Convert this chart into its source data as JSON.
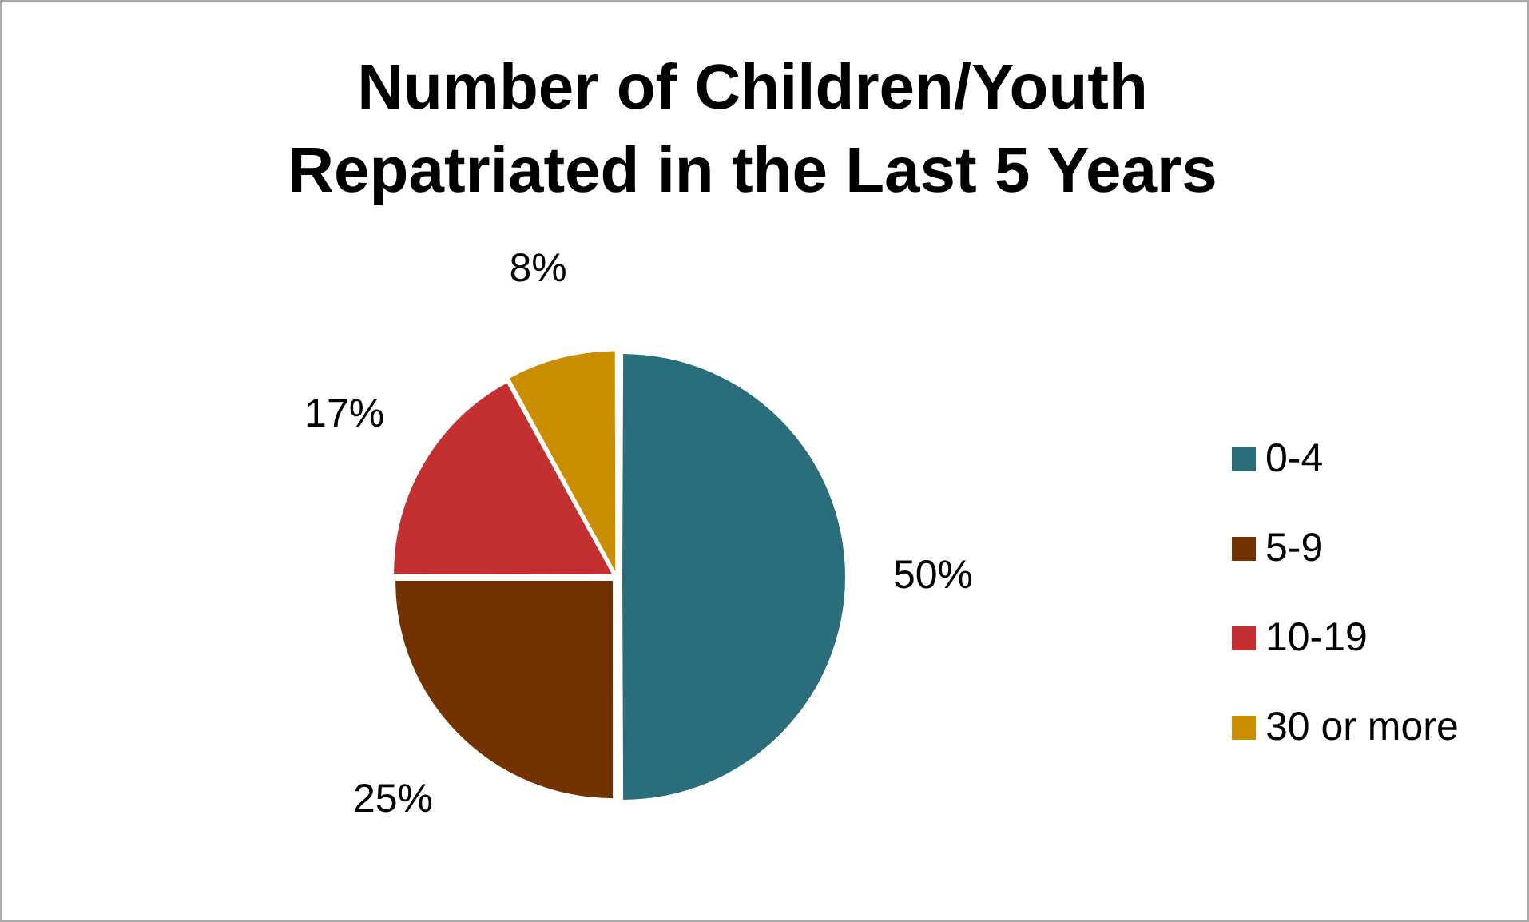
{
  "chart_data": {
    "type": "pie",
    "title": "Number of Children/Youth Repatriated in the Last 5 Years",
    "categories": [
      "0-4",
      "5-9",
      "10-19",
      "30 or more"
    ],
    "values": [
      50,
      25,
      17,
      8
    ],
    "colors": [
      "#2a6e7c",
      "#733300",
      "#c3302f",
      "#c98f00"
    ],
    "value_labels": [
      "50%",
      "25%",
      "17%",
      "8%"
    ],
    "legend": "right"
  }
}
